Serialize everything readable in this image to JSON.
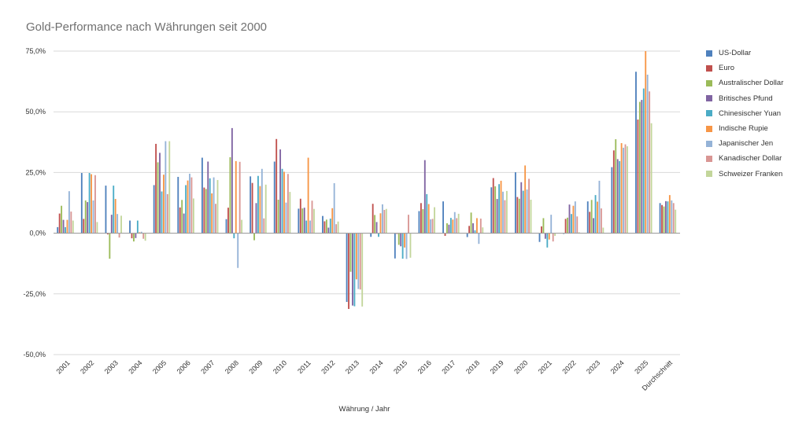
{
  "chart_data": {
    "type": "bar",
    "title": "Gold-Performance nach Währungen seit 2000",
    "xlabel": "Währung / Jahr",
    "ylabel": "",
    "ylim": [
      -50,
      75
    ],
    "yticks": [
      75,
      50,
      25,
      0,
      -25,
      -50
    ],
    "ytick_labels": [
      "75,0%",
      "50,0%",
      "25,0%",
      "0,0%",
      "-25,0%",
      "-50,0%"
    ],
    "grid": true,
    "legend_position": "right",
    "categories": [
      "2001",
      "2002",
      "2003",
      "2004",
      "2005",
      "2006",
      "2007",
      "2008",
      "2009",
      "2010",
      "2011",
      "2012",
      "2013",
      "2014",
      "2015",
      "2016",
      "2017",
      "2018",
      "2019",
      "2020",
      "2021",
      "2022",
      "2023",
      "2024",
      "2025",
      "Durchschnitt"
    ],
    "series": [
      {
        "name": "US-Dollar",
        "color": "#4f81bd",
        "values": [
          2.5,
          24.8,
          19.6,
          5.2,
          19.8,
          23.2,
          31.1,
          5.8,
          23.4,
          29.5,
          10.1,
          7.1,
          -28.3,
          -1.5,
          -10.4,
          9.1,
          13.1,
          -1.6,
          18.9,
          25.1,
          -3.6,
          -0.3,
          13.1,
          27.2,
          66.5,
          12.4
        ]
      },
      {
        "name": "Euro",
        "color": "#c0504d",
        "values": [
          8.1,
          5.9,
          -0.5,
          -2.1,
          36.8,
          10.6,
          18.8,
          10.5,
          20.7,
          38.8,
          14.2,
          4.9,
          -31.2,
          12.1,
          -0.3,
          12.4,
          -1.1,
          3.0,
          22.7,
          14.9,
          2.8,
          5.9,
          8.8,
          34.1,
          46.8,
          11.6
        ]
      },
      {
        "name": "Australischer Dollar",
        "color": "#9bbb59",
        "values": [
          11.3,
          13.5,
          -10.5,
          -3.4,
          29.2,
          13.7,
          18.2,
          31.3,
          -2.9,
          13.8,
          10.2,
          5.6,
          -15.9,
          7.5,
          -4.8,
          9.9,
          4.1,
          8.5,
          19.3,
          14.2,
          6.2,
          6.4,
          13.7,
          38.7,
          54.1,
          11.0
        ]
      },
      {
        "name": "Britisches Pfund",
        "color": "#8064a2",
        "values": [
          5.5,
          12.8,
          7.6,
          -2.0,
          33.1,
          8.1,
          29.5,
          43.3,
          12.4,
          34.5,
          10.5,
          2.3,
          -29.8,
          4.6,
          -5.4,
          30.1,
          3.5,
          4.1,
          14.1,
          21.0,
          -2.3,
          11.8,
          6.2,
          30.5,
          54.9,
          13.2
        ]
      },
      {
        "name": "Chinesischer Yuan",
        "color": "#4bacc6",
        "values": [
          2.5,
          24.8,
          19.6,
          5.2,
          17.2,
          19.8,
          22.6,
          -2.1,
          23.6,
          26.5,
          5.2,
          6.0,
          -30.1,
          -1.5,
          -10.5,
          16.1,
          6.3,
          1.2,
          20.2,
          17.5,
          -5.9,
          7.9,
          15.7,
          29.7,
          59.6,
          13.1
        ]
      },
      {
        "name": "Indische Rupie",
        "color": "#f79646",
        "values": [
          5.5,
          24.3,
          14.1,
          0.4,
          24.1,
          21.7,
          16.4,
          29.7,
          19.4,
          25.3,
          31.1,
          10.3,
          -19.0,
          8.2,
          -5.9,
          12.0,
          5.6,
          6.2,
          21.6,
          27.9,
          -2.6,
          11.3,
          13.0,
          37.1,
          75.0,
          15.7
        ]
      },
      {
        "name": "Japanischer Jen",
        "color": "#95b3d7",
        "values": [
          17.3,
          13.5,
          7.9,
          0.6,
          37.9,
          24.5,
          23.0,
          -14.3,
          26.5,
          12.6,
          5.2,
          20.6,
          -23.0,
          11.9,
          -10.6,
          5.7,
          8.7,
          -4.4,
          17.1,
          18.0,
          7.6,
          13.1,
          21.6,
          35.2,
          65.3,
          13.5
        ]
      },
      {
        "name": "Kanadischer Dollar",
        "color": "#d99694",
        "values": [
          8.9,
          23.9,
          -1.8,
          -2.3,
          16.1,
          23.0,
          12.1,
          29.4,
          6.1,
          24.4,
          13.4,
          3.7,
          -23.2,
          9.6,
          7.6,
          5.9,
          6.2,
          6.0,
          13.6,
          22.4,
          -3.4,
          6.9,
          10.2,
          36.6,
          58.4,
          12.4
        ]
      },
      {
        "name": "Schweizer Franken",
        "color": "#c3d69b",
        "values": [
          5.2,
          4.6,
          7.2,
          -3.1,
          37.9,
          14.3,
          21.9,
          5.5,
          20.0,
          17.0,
          10.0,
          4.8,
          -30.2,
          10.0,
          -10.1,
          10.7,
          8.0,
          2.4,
          17.4,
          13.8,
          -1.1,
          0.4,
          2.3,
          35.8,
          45.3,
          9.7
        ]
      }
    ]
  }
}
